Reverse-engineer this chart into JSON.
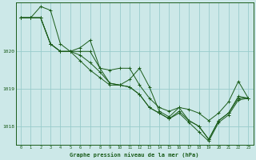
{
  "title": "Graphe pression niveau de la mer (hPa)",
  "background_color": "#cce8e8",
  "grid_color": "#99cccc",
  "line_color": "#1a5c1a",
  "xlim": [
    -0.5,
    23.5
  ],
  "ylim": [
    1017.5,
    1021.3
  ],
  "yticks": [
    1018,
    1019,
    1020
  ],
  "xticks": [
    0,
    1,
    2,
    3,
    4,
    5,
    6,
    7,
    8,
    9,
    10,
    11,
    12,
    13,
    14,
    15,
    16,
    17,
    18,
    19,
    20,
    21,
    22,
    23
  ],
  "series": [
    [
      1020.9,
      1020.9,
      1021.2,
      1021.1,
      1020.2,
      1020.0,
      1020.1,
      1020.3,
      1019.55,
      1019.15,
      1019.1,
      1019.25,
      1019.55,
      1019.05,
      1018.4,
      1018.25,
      1018.5,
      1018.15,
      1018.0,
      1017.65,
      1018.15,
      1018.35,
      1018.75,
      1018.75
    ],
    [
      1020.9,
      1020.9,
      1020.9,
      1020.2,
      1020.0,
      1020.0,
      1019.9,
      1019.7,
      1019.45,
      1019.15,
      1019.1,
      1019.05,
      1018.85,
      1018.5,
      1018.35,
      1018.2,
      1018.4,
      1018.15,
      1018.0,
      1017.65,
      1018.15,
      1018.35,
      1018.8,
      1018.75
    ],
    [
      1020.9,
      1020.9,
      1020.9,
      1020.2,
      1020.0,
      1020.0,
      1019.75,
      1019.5,
      1019.3,
      1019.1,
      1019.1,
      1019.05,
      1018.85,
      1018.5,
      1018.35,
      1018.2,
      1018.35,
      1018.1,
      1017.85,
      1017.6,
      1018.1,
      1018.3,
      1018.7,
      1018.75
    ],
    [
      1020.9,
      1020.9,
      1020.9,
      1020.2,
      1020.0,
      1020.0,
      1020.0,
      1020.0,
      1019.55,
      1019.5,
      1019.55,
      1019.55,
      1019.1,
      1018.75,
      1018.5,
      1018.4,
      1018.5,
      1018.45,
      1018.35,
      1018.15,
      1018.35,
      1018.65,
      1019.2,
      1018.75
    ]
  ]
}
